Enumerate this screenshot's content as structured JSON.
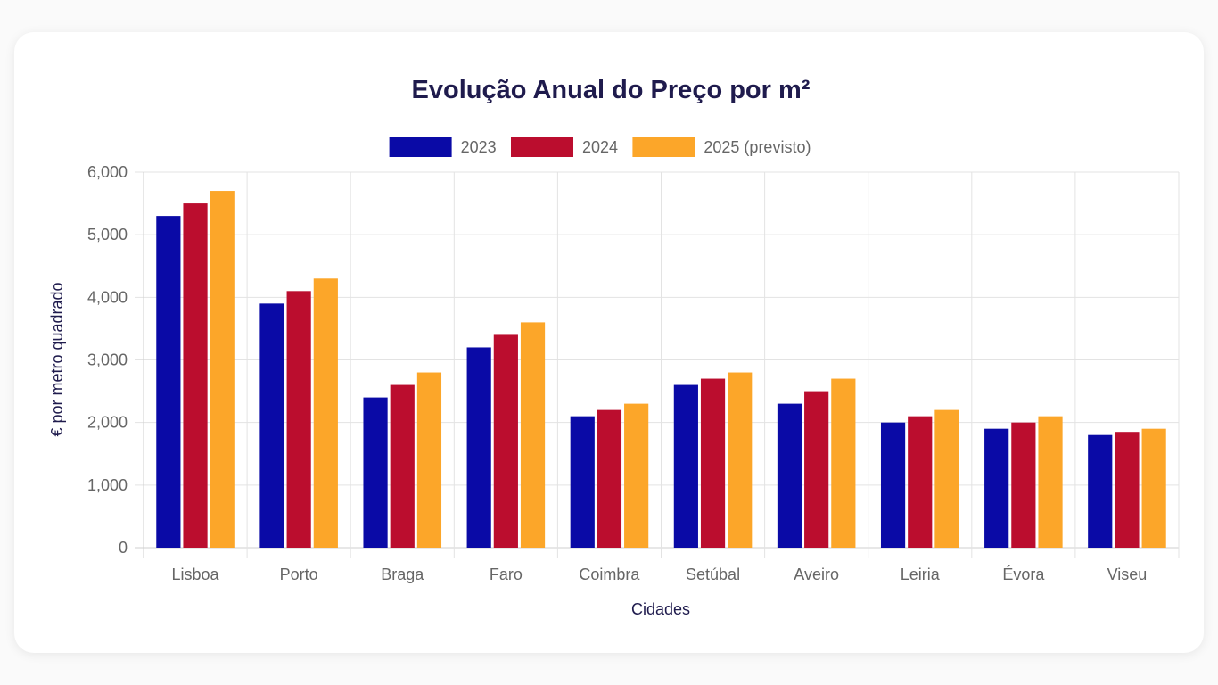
{
  "chart_data": {
    "type": "bar",
    "title": "Evolução Anual do Preço por m²",
    "xlabel": "Cidades",
    "ylabel": "€ por metro quadrado",
    "ylim": [
      0,
      6000
    ],
    "yticks": [
      "0",
      "1,000",
      "2,000",
      "3,000",
      "4,000",
      "5,000",
      "6,000"
    ],
    "grid": true,
    "legend_position": "top",
    "categories": [
      "Lisboa",
      "Porto",
      "Braga",
      "Faro",
      "Coimbra",
      "Setúbal",
      "Aveiro",
      "Leiria",
      "Évora",
      "Viseu"
    ],
    "series": [
      {
        "name": "2023",
        "color": "#0a0aa6",
        "values": [
          5300,
          3900,
          2400,
          3200,
          2100,
          2600,
          2300,
          2000,
          1900,
          1800
        ]
      },
      {
        "name": "2024",
        "color": "#bb0d2e",
        "values": [
          5500,
          4100,
          2600,
          3400,
          2200,
          2700,
          2500,
          2100,
          2000,
          1850
        ]
      },
      {
        "name": "2025 (previsto)",
        "color": "#fca629",
        "values": [
          5700,
          4300,
          2800,
          3600,
          2300,
          2800,
          2700,
          2200,
          2100,
          1900
        ]
      }
    ]
  }
}
